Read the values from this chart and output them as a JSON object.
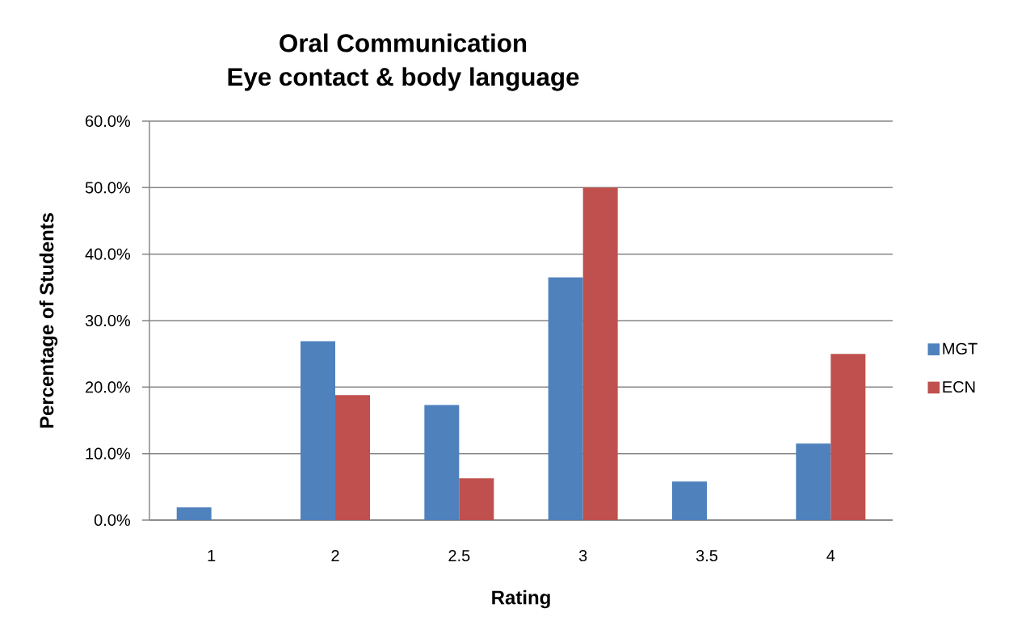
{
  "chart_data": {
    "type": "bar",
    "title": "Oral Communication",
    "subtitle": "Eye contact & body language",
    "xlabel": "Rating",
    "ylabel": "Percentage of Students",
    "categories": [
      "1",
      "2",
      "2.5",
      "3",
      "3.5",
      "4"
    ],
    "series": [
      {
        "name": "MGT",
        "color": "#4f81bd",
        "values": [
          1.9,
          26.9,
          17.3,
          36.5,
          5.8,
          11.5
        ]
      },
      {
        "name": "ECN",
        "color": "#c0504d",
        "values": [
          0,
          18.8,
          6.3,
          50,
          0,
          25
        ]
      }
    ],
    "ylim": [
      0,
      60
    ],
    "yticks": [
      {
        "value": 0,
        "label": "0.0%"
      },
      {
        "value": 10,
        "label": "10.0%"
      },
      {
        "value": 20,
        "label": "20.0%"
      },
      {
        "value": 30,
        "label": "30.0%"
      },
      {
        "value": 40,
        "label": "40.0%"
      },
      {
        "value": 50,
        "label": "50.0%"
      },
      {
        "value": 60,
        "label": "60.0%"
      }
    ],
    "grid": "y",
    "legend": "right"
  }
}
